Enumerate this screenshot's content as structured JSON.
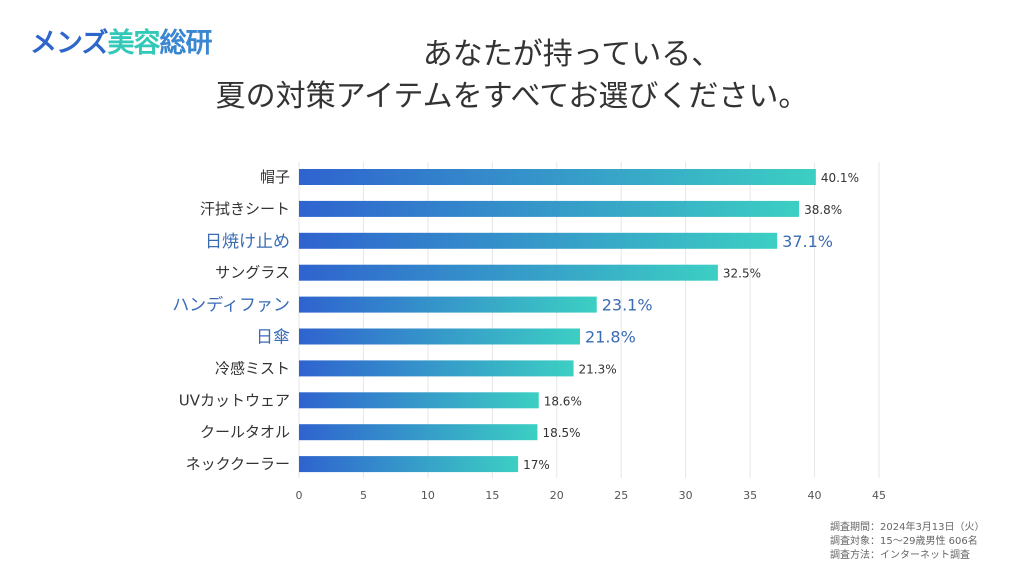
{
  "brand": {
    "logo_parts": [
      "メンズ",
      "美容",
      "総研"
    ],
    "colors": {
      "blue": "#2f66cc",
      "teal": "#33c9b8"
    }
  },
  "title_lines": [
    "あなたが持っている、",
    "夏の対策アイテムをすべてお選びください。"
  ],
  "chart_data": {
    "type": "bar",
    "orientation": "horizontal",
    "title": "あなたが持っている、夏の対策アイテムをすべてお選びください。",
    "xlabel": "",
    "ylabel": "",
    "categories": [
      "帽子",
      "汗拭きシート",
      "日焼け止め",
      "サングラス",
      "ハンディファン",
      "日傘",
      "冷感ミスト",
      "UVカットウェア",
      "クールタオル",
      "ネッククーラー"
    ],
    "values": [
      40.1,
      38.8,
      37.1,
      32.5,
      23.1,
      21.8,
      21.3,
      18.6,
      18.5,
      17
    ],
    "value_labels": [
      "40.1%",
      "38.8%",
      "37.1%",
      "32.5%",
      "23.1%",
      "21.8%",
      "21.3%",
      "18.6%",
      "18.5%",
      "17%"
    ],
    "highlighted": [
      false,
      false,
      true,
      false,
      true,
      true,
      false,
      false,
      false,
      false
    ],
    "xlim": [
      0,
      45
    ],
    "xticks": [
      0,
      5,
      10,
      15,
      20,
      25,
      30,
      35,
      40,
      45
    ],
    "grid": true,
    "legend": "none",
    "bar_gradient": [
      "#2f63cf",
      "#3ccfc3"
    ],
    "highlight_color": "#3a6cb5",
    "label_color": "#333333"
  },
  "notes": [
    "調査期間：2024年3月13日（火）",
    "調査対象：15〜29歳男性 606名",
    "調査方法：インターネット調査"
  ]
}
